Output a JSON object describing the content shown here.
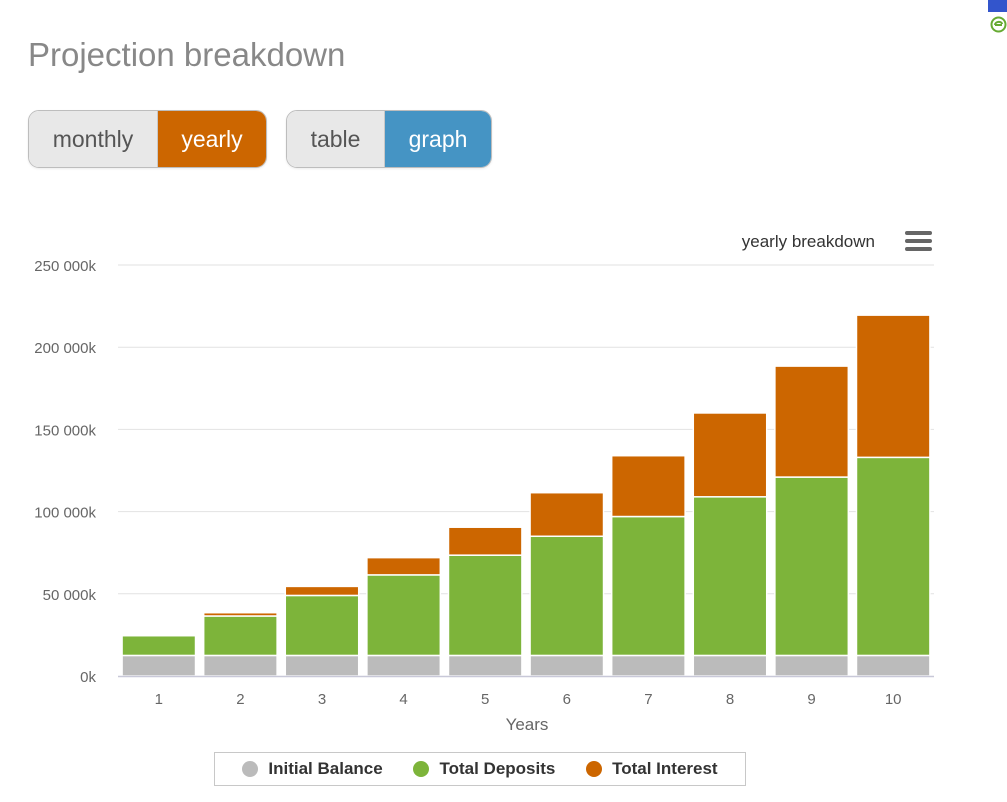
{
  "page": {
    "title": "Projection breakdown"
  },
  "toggles": {
    "period": {
      "monthly_label": "monthly",
      "yearly_label": "yearly",
      "selected": "yearly"
    },
    "view": {
      "table_label": "table",
      "graph_label": "graph",
      "selected": "graph"
    }
  },
  "colors": {
    "initial_balance": "#bbbbbb",
    "total_deposits": "#7db43a",
    "total_interest": "#cc6600",
    "accent_orange": "#cc6600",
    "accent_blue": "#4594c4"
  },
  "icons": {
    "menu": "hamburger-menu-icon",
    "corner": "green-e-icon"
  },
  "chart_data": {
    "type": "bar",
    "stacked": true,
    "title": "yearly breakdown",
    "xlabel": "Years",
    "ylabel": "",
    "categories": [
      "1",
      "2",
      "3",
      "4",
      "5",
      "6",
      "7",
      "8",
      "9",
      "10"
    ],
    "ylim": [
      0,
      250000
    ],
    "yticks": [
      0,
      50000,
      100000,
      150000,
      200000,
      250000
    ],
    "ytick_labels": [
      "0k",
      "50 000k",
      "100 000k",
      "150 000k",
      "200 000k",
      "250 000k"
    ],
    "grid": true,
    "legend_position": "bottom-center",
    "series": [
      {
        "name": "Initial Balance",
        "color": "#bbbbbb",
        "values": [
          12500,
          12500,
          12500,
          12500,
          12500,
          12500,
          12500,
          12500,
          12500,
          12500
        ]
      },
      {
        "name": "Total Deposits",
        "color": "#7db43a",
        "values": [
          12000,
          24000,
          36500,
          49000,
          61000,
          72500,
          84500,
          96500,
          108500,
          120500
        ]
      },
      {
        "name": "Total Interest",
        "color": "#cc6600",
        "values": [
          0,
          2000,
          5500,
          10500,
          17000,
          26500,
          37000,
          51000,
          67500,
          86500
        ]
      }
    ]
  }
}
